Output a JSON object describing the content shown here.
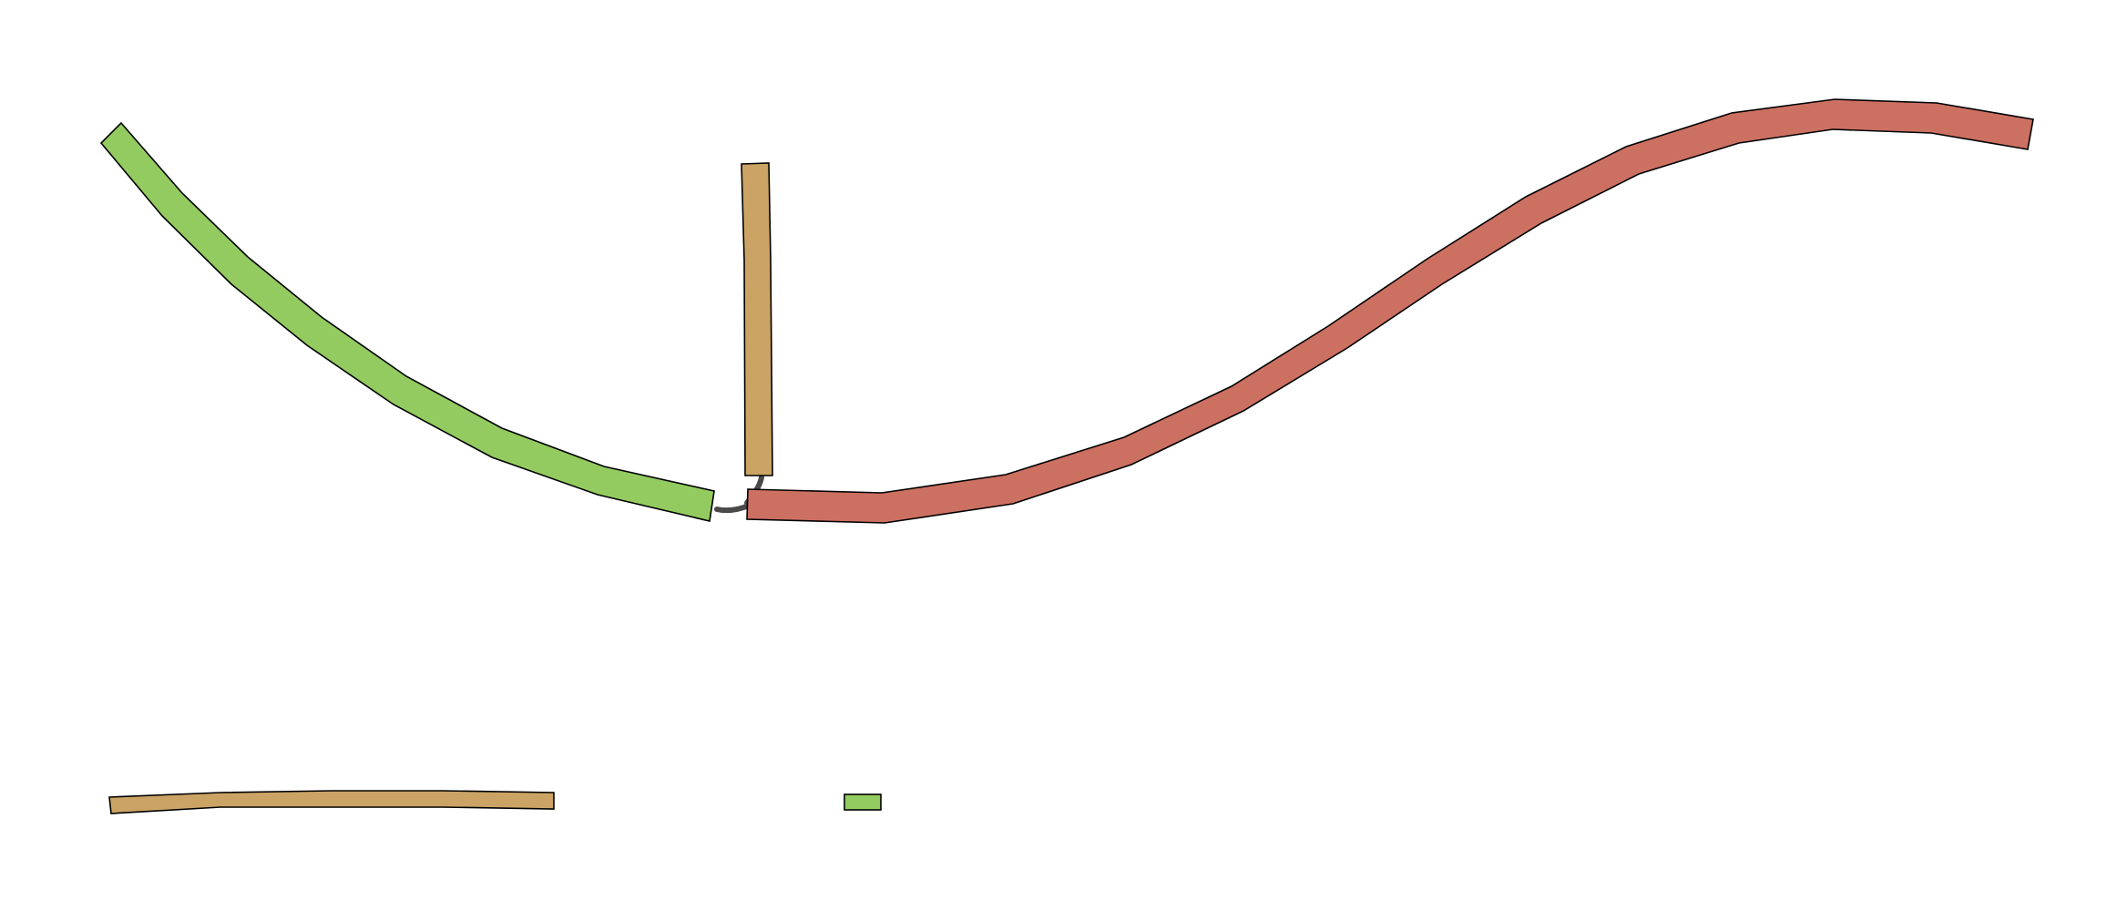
{
  "colors": {
    "contig_green": "#93cb60",
    "contig_tan": "#cba465",
    "contig_red": "#cc7062",
    "link": "#4a4a4a",
    "outline": "#000000",
    "background": "#ffffff"
  },
  "graph": {
    "nodes": [
      {
        "id": "green-node",
        "color": "green"
      },
      {
        "id": "tan-node",
        "color": "tan"
      },
      {
        "id": "red-node",
        "color": "red"
      }
    ],
    "links": [
      {
        "from": "green-node",
        "to": "red-node"
      },
      {
        "from": "tan-node",
        "to": "red-node"
      }
    ],
    "legend_items": [
      {
        "id": "small-tan-node",
        "color": "tan"
      },
      {
        "id": "small-green-node",
        "color": "green"
      }
    ]
  }
}
